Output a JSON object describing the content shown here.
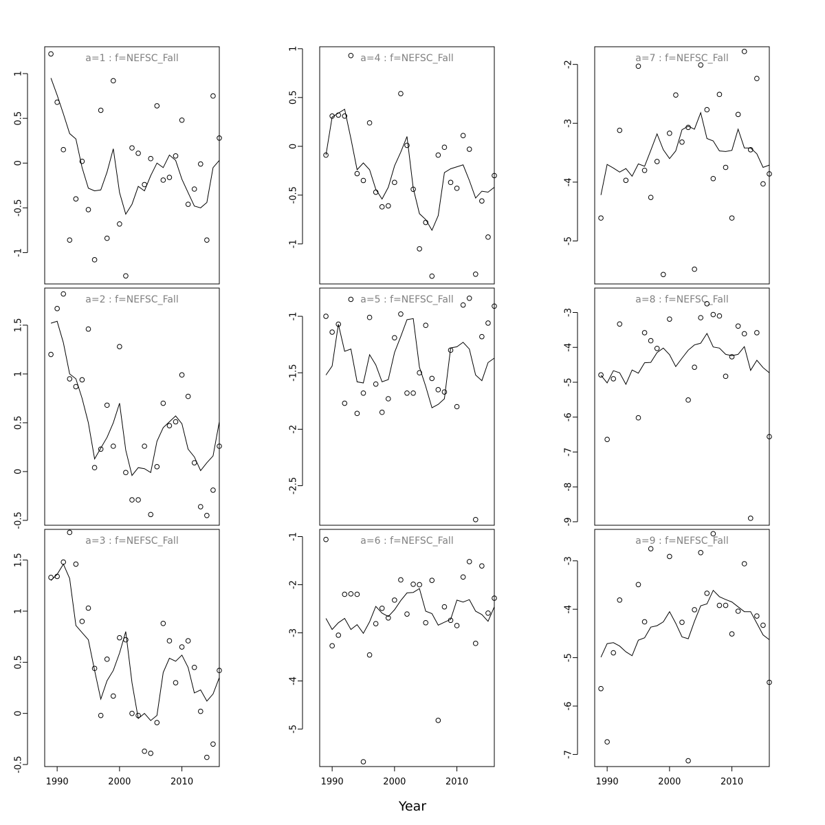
{
  "figure": {
    "xlabel": "Year"
  },
  "chart_data": [
    {
      "type": "line",
      "title": "a=1 : f=NEFSC_Fall",
      "xlim": [
        1988,
        2016
      ],
      "ylim": [
        -1.35,
        1.3
      ],
      "xticks": [
        1990,
        2000,
        2010
      ],
      "yticks": [
        -1.0,
        -0.5,
        0.0,
        0.5,
        1.0
      ],
      "x": [
        1989,
        1990,
        1991,
        1992,
        1993,
        1994,
        1995,
        1996,
        1997,
        1998,
        1999,
        2000,
        2001,
        2002,
        2003,
        2004,
        2005,
        2006,
        2007,
        2008,
        2009,
        2010,
        2011,
        2012,
        2013,
        2014,
        2015,
        2016
      ],
      "observed": [
        1.22,
        0.68,
        0.15,
        -0.86,
        -0.4,
        0.02,
        -0.52,
        -1.08,
        0.59,
        -0.84,
        0.92,
        -0.68,
        -1.26,
        0.17,
        0.11,
        -0.24,
        0.05,
        0.64,
        -0.19,
        -0.16,
        0.08,
        0.48,
        -0.46,
        -0.29,
        -0.01,
        -0.86,
        0.75,
        0.28
      ],
      "fitted": [
        0.95,
        0.76,
        0.55,
        0.33,
        0.27,
        -0.05,
        -0.28,
        -0.31,
        -0.3,
        -0.1,
        0.16,
        -0.33,
        -0.57,
        -0.46,
        -0.26,
        -0.31,
        -0.14,
        0.0,
        -0.05,
        0.09,
        0.03,
        -0.18,
        -0.33,
        -0.48,
        -0.5,
        -0.44,
        -0.05,
        0.03
      ]
    },
    {
      "type": "line",
      "title": "a=2 : f=NEFSC_Fall",
      "xlim": [
        1988,
        2016
      ],
      "ylim": [
        -0.55,
        1.88
      ],
      "xticks": [
        1990,
        2000,
        2010
      ],
      "yticks": [
        -0.5,
        0.0,
        0.5,
        1.0,
        1.5
      ],
      "x": [
        1989,
        1990,
        1991,
        1992,
        1993,
        1994,
        1995,
        1996,
        1997,
        1998,
        1999,
        2000,
        2001,
        2002,
        2003,
        2004,
        2005,
        2006,
        2007,
        2008,
        2009,
        2010,
        2011,
        2012,
        2013,
        2014,
        2015,
        2016
      ],
      "observed": [
        1.2,
        1.67,
        1.82,
        0.95,
        0.87,
        0.94,
        1.46,
        0.04,
        0.23,
        0.68,
        0.26,
        1.28,
        -0.01,
        -0.29,
        -0.29,
        0.26,
        -0.44,
        0.05,
        0.7,
        0.47,
        0.51,
        0.99,
        0.77,
        0.09,
        -0.36,
        -0.45,
        -0.19,
        0.26
      ],
      "fitted": [
        1.52,
        1.54,
        1.32,
        1.0,
        0.95,
        0.75,
        0.5,
        0.13,
        0.24,
        0.35,
        0.5,
        0.7,
        0.22,
        -0.04,
        0.04,
        0.03,
        -0.01,
        0.31,
        0.45,
        0.51,
        0.57,
        0.49,
        0.23,
        0.15,
        0.01,
        0.09,
        0.16,
        0.51
      ]
    },
    {
      "type": "line",
      "title": "a=3 : f=NEFSC_Fall",
      "xlim": [
        1988,
        2016
      ],
      "ylim": [
        -0.52,
        1.8
      ],
      "xticks": [
        1990,
        2000,
        2010
      ],
      "yticks": [
        -0.5,
        0.0,
        0.5,
        1.0,
        1.5
      ],
      "x": [
        1989,
        1990,
        1991,
        1992,
        1993,
        1994,
        1995,
        1996,
        1997,
        1998,
        1999,
        2000,
        2001,
        2002,
        2003,
        2004,
        2005,
        2006,
        2007,
        2008,
        2009,
        2010,
        2011,
        2012,
        2013,
        2014,
        2015,
        2016
      ],
      "observed": [
        1.33,
        1.34,
        1.48,
        1.77,
        1.46,
        0.9,
        1.03,
        0.44,
        -0.02,
        0.53,
        0.17,
        0.74,
        0.72,
        0.0,
        -0.02,
        -0.37,
        -0.39,
        -0.09,
        0.88,
        0.71,
        0.3,
        0.65,
        0.71,
        0.45,
        0.02,
        -0.43,
        -0.3,
        0.42
      ],
      "fitted": [
        1.3,
        1.36,
        1.46,
        1.32,
        0.86,
        0.79,
        0.72,
        0.42,
        0.14,
        0.32,
        0.42,
        0.59,
        0.8,
        0.3,
        -0.05,
        0.0,
        -0.07,
        -0.02,
        0.4,
        0.54,
        0.51,
        0.57,
        0.45,
        0.2,
        0.23,
        0.12,
        0.19,
        0.35
      ]
    },
    {
      "type": "line",
      "title": "a=4 : f=NEFSC_Fall",
      "xlim": [
        1988,
        2016
      ],
      "ylim": [
        -1.41,
        1.02
      ],
      "xticks": [
        1990,
        2000,
        2010
      ],
      "yticks": [
        -1.0,
        -0.5,
        0.0,
        0.5,
        1.0
      ],
      "x": [
        1989,
        1990,
        1991,
        1992,
        1993,
        1994,
        1995,
        1996,
        1997,
        1998,
        1999,
        2000,
        2001,
        2002,
        2003,
        2004,
        2005,
        2006,
        2007,
        2008,
        2009,
        2010,
        2011,
        2012,
        2013,
        2014,
        2015,
        2016
      ],
      "observed": [
        -0.09,
        0.31,
        0.32,
        0.31,
        0.93,
        -0.28,
        -0.35,
        0.24,
        -0.47,
        -0.62,
        -0.61,
        -0.37,
        0.54,
        0.01,
        -0.44,
        -1.05,
        -0.78,
        -1.33,
        -0.09,
        -0.01,
        -0.37,
        -0.43,
        0.11,
        -0.03,
        -1.31,
        -0.56,
        -0.93,
        -0.3
      ],
      "fitted": [
        -0.09,
        0.3,
        0.34,
        0.38,
        0.08,
        -0.24,
        -0.17,
        -0.24,
        -0.44,
        -0.54,
        -0.42,
        -0.2,
        -0.06,
        0.1,
        -0.43,
        -0.69,
        -0.75,
        -0.86,
        -0.71,
        -0.27,
        -0.23,
        -0.21,
        -0.19,
        -0.35,
        -0.53,
        -0.46,
        -0.47,
        -0.42
      ]
    },
    {
      "type": "line",
      "title": "a=5 : f=NEFSC_Fall",
      "xlim": [
        1988,
        2016
      ],
      "ylim": [
        -2.85,
        -0.75
      ],
      "xticks": [
        1990,
        2000,
        2010
      ],
      "yticks": [
        -2.5,
        -2.0,
        -1.5,
        -1.0
      ],
      "x": [
        1989,
        1990,
        1991,
        1992,
        1993,
        1994,
        1995,
        1996,
        1997,
        1998,
        1999,
        2000,
        2001,
        2002,
        2003,
        2004,
        2005,
        2006,
        2007,
        2008,
        2009,
        2010,
        2011,
        2012,
        2013,
        2014,
        2015,
        2016
      ],
      "observed": [
        -1.0,
        -1.14,
        -1.07,
        -1.77,
        -0.85,
        -1.86,
        -1.68,
        -1.01,
        -1.6,
        -1.85,
        -1.73,
        -1.19,
        -0.98,
        -1.68,
        -1.68,
        -1.5,
        -1.08,
        -1.55,
        -1.65,
        -1.67,
        -1.3,
        -1.8,
        -0.9,
        -0.84,
        -2.8,
        -1.18,
        -1.06,
        -0.91
      ],
      "fitted": [
        -1.52,
        -1.44,
        -1.07,
        -1.31,
        -1.29,
        -1.58,
        -1.59,
        -1.34,
        -1.43,
        -1.58,
        -1.56,
        -1.32,
        -1.18,
        -1.03,
        -1.02,
        -1.45,
        -1.62,
        -1.81,
        -1.78,
        -1.73,
        -1.28,
        -1.27,
        -1.23,
        -1.29,
        -1.52,
        -1.57,
        -1.41,
        -1.37
      ]
    },
    {
      "type": "line",
      "title": "a=6 : f=NEFSC_Fall",
      "xlim": [
        1988,
        2016
      ],
      "ylim": [
        -5.78,
        -0.85
      ],
      "xticks": [
        1990,
        2000,
        2010
      ],
      "yticks": [
        -5,
        -4,
        -3,
        -2,
        -1
      ],
      "x": [
        1989,
        1990,
        1991,
        1992,
        1993,
        1994,
        1995,
        1996,
        1997,
        1998,
        1999,
        2000,
        2001,
        2002,
        2003,
        2004,
        2005,
        2006,
        2007,
        2008,
        2009,
        2010,
        2011,
        2012,
        2013,
        2014,
        2015,
        2016
      ],
      "observed": [
        -1.06,
        -3.27,
        -3.05,
        -2.2,
        -2.19,
        -2.2,
        -5.68,
        -3.46,
        -2.81,
        -2.49,
        -2.69,
        -2.32,
        -1.9,
        -2.61,
        -1.99,
        -2.0,
        -2.79,
        -1.91,
        -4.82,
        -2.46,
        -2.74,
        -2.85,
        -1.84,
        -1.52,
        -3.22,
        -1.61,
        -2.59,
        -2.28
      ],
      "fitted": [
        -2.7,
        -2.93,
        -2.79,
        -2.7,
        -2.93,
        -2.83,
        -3.01,
        -2.77,
        -2.45,
        -2.59,
        -2.66,
        -2.52,
        -2.33,
        -2.17,
        -2.16,
        -2.08,
        -2.55,
        -2.6,
        -2.84,
        -2.78,
        -2.72,
        -2.32,
        -2.36,
        -2.31,
        -2.55,
        -2.62,
        -2.76,
        -2.46
      ]
    },
    {
      "type": "line",
      "title": "a=7 : f=NEFSC_Fall",
      "xlim": [
        1988,
        2016
      ],
      "ylim": [
        -5.73,
        -1.7
      ],
      "xticks": [
        1990,
        2000,
        2010
      ],
      "yticks": [
        -5,
        -4,
        -3,
        -2
      ],
      "x": [
        1989,
        1990,
        1991,
        1992,
        1993,
        1994,
        1995,
        1996,
        1997,
        1998,
        1999,
        2000,
        2001,
        2002,
        2003,
        2004,
        2005,
        2006,
        2007,
        2008,
        2009,
        2010,
        2011,
        2012,
        2013,
        2014,
        2015,
        2016
      ],
      "observed": [
        -4.61,
        null,
        null,
        -3.12,
        -3.97,
        null,
        -2.03,
        -3.8,
        -4.26,
        -3.65,
        -5.57,
        -3.17,
        -2.52,
        -3.32,
        -3.07,
        -5.48,
        -2.01,
        -2.77,
        -3.94,
        -2.51,
        -3.75,
        -4.61,
        -2.85,
        -1.78,
        -3.45,
        -2.24,
        -4.03,
        -3.86
      ],
      "fitted": [
        -4.22,
        -3.7,
        -3.76,
        -3.83,
        -3.77,
        -3.9,
        -3.69,
        -3.73,
        -3.46,
        -3.18,
        -3.45,
        -3.6,
        -3.47,
        -3.11,
        -3.05,
        -3.1,
        -2.82,
        -3.26,
        -3.3,
        -3.47,
        -3.48,
        -3.46,
        -3.1,
        -3.42,
        -3.42,
        -3.52,
        -3.75,
        -3.71
      ]
    },
    {
      "type": "line",
      "title": "a=8 : f=NEFSC_Fall",
      "xlim": [
        1988,
        2016
      ],
      "ylim": [
        -9.1,
        -2.3
      ],
      "xticks": [
        1990,
        2000,
        2010
      ],
      "yticks": [
        -9,
        -8,
        -7,
        -6,
        -5,
        -4,
        -3
      ],
      "x": [
        1989,
        1990,
        1991,
        1992,
        1993,
        1994,
        1995,
        1996,
        1997,
        1998,
        1999,
        2000,
        2001,
        2002,
        2003,
        2004,
        2005,
        2006,
        2007,
        2008,
        2009,
        2010,
        2011,
        2012,
        2013,
        2014,
        2015,
        2016
      ],
      "observed": [
        -4.79,
        -6.64,
        -4.9,
        -3.33,
        null,
        null,
        -6.02,
        -3.58,
        -3.81,
        -4.03,
        null,
        -3.19,
        null,
        null,
        -5.51,
        -4.57,
        -3.15,
        -2.75,
        -3.06,
        -3.1,
        -4.83,
        -4.27,
        -3.39,
        -3.61,
        -8.9,
        -3.58,
        null,
        -6.56
      ],
      "fitted": [
        -4.8,
        -5.02,
        -4.67,
        -4.73,
        -5.06,
        -4.65,
        -4.74,
        -4.44,
        -4.43,
        -4.15,
        -4.02,
        -4.21,
        -4.55,
        -4.31,
        -4.08,
        -3.93,
        -3.88,
        -3.6,
        -3.99,
        -4.02,
        -4.2,
        -4.24,
        -4.2,
        -3.98,
        -4.66,
        -4.37,
        -4.58,
        -4.73
      ]
    },
    {
      "type": "line",
      "title": "a=9 : f=NEFSC_Fall",
      "xlim": [
        1988,
        2016
      ],
      "ylim": [
        -7.25,
        -2.35
      ],
      "xticks": [
        1990,
        2000,
        2010
      ],
      "yticks": [
        -7,
        -6,
        -5,
        -4,
        -3
      ],
      "x": [
        1989,
        1990,
        1991,
        1992,
        1993,
        1994,
        1995,
        1996,
        1997,
        1998,
        1999,
        2000,
        2001,
        2002,
        2003,
        2004,
        2005,
        2006,
        2007,
        2008,
        2009,
        2010,
        2011,
        2012,
        2013,
        2014,
        2015,
        2016
      ],
      "observed": [
        -5.64,
        -6.74,
        -4.9,
        -3.81,
        null,
        null,
        -3.49,
        -4.26,
        -2.75,
        null,
        null,
        -2.91,
        null,
        -4.27,
        -7.13,
        -4.01,
        -2.83,
        -3.67,
        -2.44,
        -3.92,
        -3.92,
        -4.51,
        -4.04,
        -3.06,
        null,
        -4.14,
        -4.33,
        -5.51
      ],
      "fitted": [
        -4.99,
        -4.71,
        -4.69,
        -4.76,
        -4.88,
        -4.96,
        -4.64,
        -4.59,
        -4.37,
        -4.34,
        -4.26,
        -4.05,
        -4.29,
        -4.57,
        -4.61,
        -4.25,
        -3.93,
        -3.89,
        -3.61,
        -3.74,
        -3.8,
        -3.85,
        -3.95,
        -4.05,
        -4.05,
        -4.29,
        -4.53,
        -4.63
      ]
    }
  ]
}
